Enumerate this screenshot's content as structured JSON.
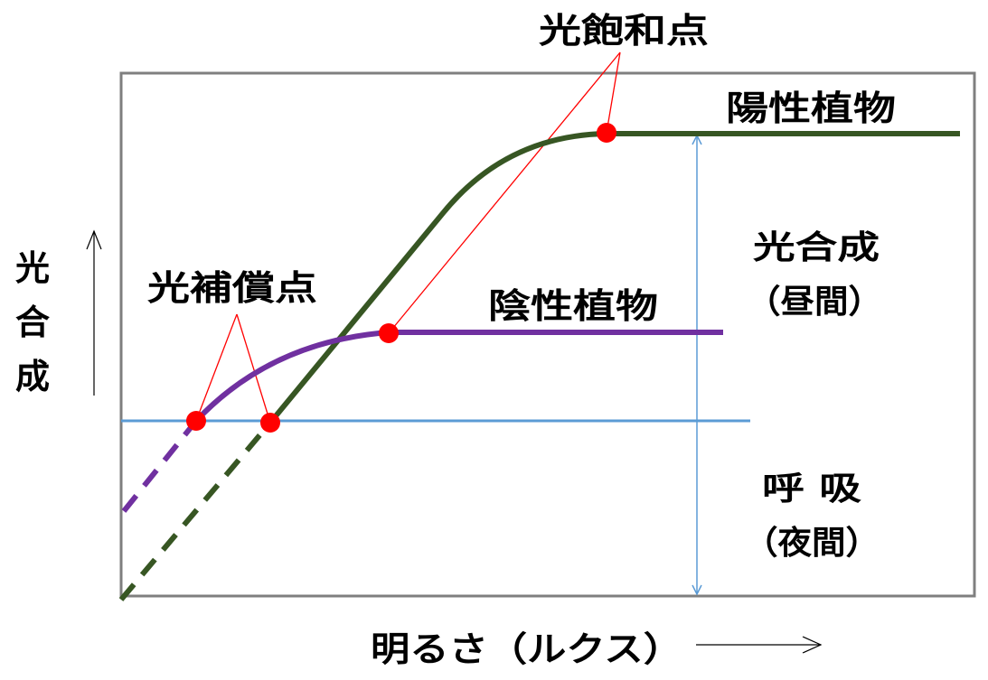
{
  "labels": {
    "y_axis": [
      "光",
      "合",
      "成"
    ],
    "x_axis": "明るさ（ルクス）",
    "sun_plant": "陽性植物",
    "shade_plant": "陰性植物",
    "light_saturation": "光飽和点",
    "light_compensation": "光補償点",
    "photosynthesis_line1": "光合成",
    "photosynthesis_line2": "（昼間）",
    "respiration_line1": "呼 吸",
    "respiration_line2": "（夜間）"
  },
  "colors": {
    "sun_plant": "#375623",
    "shade_plant": "#7030A0",
    "baseline": "#5B9BD5",
    "dimension_arrow": "#5B9BD5",
    "points": "#FF0000",
    "callout_lines": "#FF0000",
    "frame": "#7F7F7F"
  }
}
